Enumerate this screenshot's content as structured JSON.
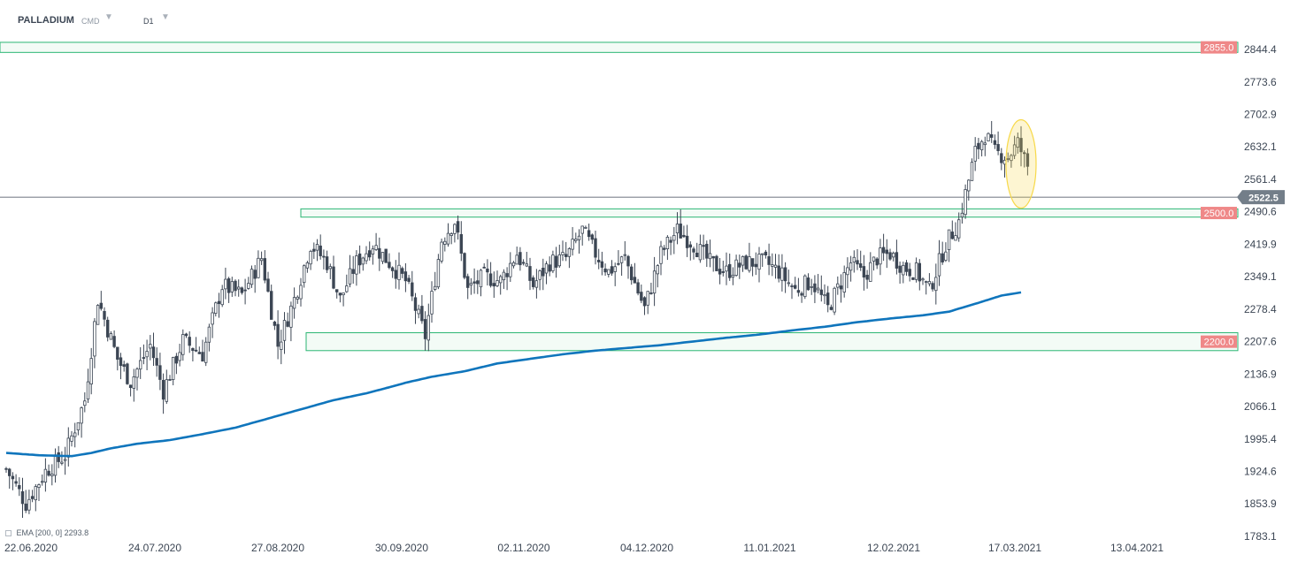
{
  "header": {
    "symbol": "PALLADIUM",
    "market": "CMD",
    "interval": "D1",
    "caret_icon": "chevron-down-icon"
  },
  "legend": {
    "name": "EMA",
    "params": "[200,  0]",
    "value": "2293.8"
  },
  "colors": {
    "candle": "#3c4654",
    "ema": "#0f75bc",
    "zone_border": "#2bb673",
    "zone_fill": "#e9f7ef",
    "tag_bg": "#ef8888",
    "price_tag_bg": "#737e89",
    "highlight": "#f7d94a"
  },
  "chart_data": {
    "type": "candlestick",
    "ylim": [
      1783.1,
      2874
    ],
    "y_ticks": [
      "2844.4",
      "2773.6",
      "2702.9",
      "2632.1",
      "2561.4",
      "2490.6",
      "2419.9",
      "2349.1",
      "2278.4",
      "2207.6",
      "2136.9",
      "2066.1",
      "1995.4",
      "1924.6",
      "1853.9",
      "1783.1"
    ],
    "x_labels": [
      "22.06.2020",
      "24.07.2020",
      "27.08.2020",
      "30.09.2020",
      "02.11.2020",
      "04.12.2020",
      "11.01.2021",
      "12.02.2021",
      "17.03.2021",
      "13.04.2021"
    ],
    "current_price": "2522.5",
    "zones": [
      {
        "label": "2855.0",
        "top": 2860,
        "bottom": 2838,
        "start_label": "22.06.2020"
      },
      {
        "label": "2500.0",
        "top": 2497,
        "bottom": 2479,
        "start_label": "27.08.2020"
      },
      {
        "label": "2200.0",
        "top": 2227,
        "bottom": 2188,
        "start_label": "27.08.2020"
      }
    ],
    "close_anchors": [
      [
        0,
        1930
      ],
      [
        6,
        1855
      ],
      [
        12,
        1925
      ],
      [
        18,
        1960
      ],
      [
        24,
        2080
      ],
      [
        28,
        2300
      ],
      [
        34,
        2170
      ],
      [
        38,
        2120
      ],
      [
        44,
        2200
      ],
      [
        48,
        2100
      ],
      [
        54,
        2210
      ],
      [
        60,
        2180
      ],
      [
        66,
        2330
      ],
      [
        72,
        2310
      ],
      [
        78,
        2390
      ],
      [
        83,
        2200
      ],
      [
        88,
        2300
      ],
      [
        93,
        2420
      ],
      [
        98,
        2380
      ],
      [
        102,
        2300
      ],
      [
        107,
        2380
      ],
      [
        112,
        2420
      ],
      [
        117,
        2380
      ],
      [
        122,
        2340
      ],
      [
        128,
        2220
      ],
      [
        133,
        2430
      ],
      [
        137,
        2470
      ],
      [
        141,
        2320
      ],
      [
        146,
        2350
      ],
      [
        151,
        2340
      ],
      [
        156,
        2400
      ],
      [
        161,
        2330
      ],
      [
        166,
        2380
      ],
      [
        171,
        2390
      ],
      [
        176,
        2450
      ],
      [
        180,
        2400
      ],
      [
        184,
        2360
      ],
      [
        189,
        2390
      ],
      [
        195,
        2280
      ],
      [
        200,
        2400
      ],
      [
        205,
        2450
      ],
      [
        210,
        2420
      ],
      [
        215,
        2380
      ],
      [
        220,
        2360
      ],
      [
        226,
        2380
      ],
      [
        232,
        2380
      ],
      [
        236,
        2360
      ],
      [
        241,
        2320
      ],
      [
        246,
        2340
      ],
      [
        251,
        2280
      ],
      [
        258,
        2380
      ],
      [
        262,
        2350
      ],
      [
        266,
        2390
      ],
      [
        270,
        2400
      ],
      [
        274,
        2370
      ],
      [
        278,
        2360
      ],
      [
        282,
        2320
      ],
      [
        287,
        2420
      ],
      [
        291,
        2470
      ],
      [
        296,
        2620
      ],
      [
        299,
        2660
      ],
      [
        302,
        2620
      ],
      [
        306,
        2610
      ],
      [
        309,
        2640
      ],
      [
        312,
        2590
      ]
    ],
    "ema_anchors": [
      [
        0,
        1965
      ],
      [
        10,
        1960
      ],
      [
        20,
        1958
      ],
      [
        26,
        1965
      ],
      [
        32,
        1975
      ],
      [
        40,
        1985
      ],
      [
        50,
        1993
      ],
      [
        60,
        2006
      ],
      [
        70,
        2020
      ],
      [
        80,
        2040
      ],
      [
        90,
        2060
      ],
      [
        100,
        2080
      ],
      [
        110,
        2095
      ],
      [
        118,
        2110
      ],
      [
        122,
        2118
      ],
      [
        130,
        2131
      ],
      [
        140,
        2143
      ],
      [
        150,
        2160
      ],
      [
        160,
        2170
      ],
      [
        170,
        2180
      ],
      [
        180,
        2188
      ],
      [
        190,
        2194
      ],
      [
        200,
        2200
      ],
      [
        210,
        2208
      ],
      [
        220,
        2216
      ],
      [
        230,
        2223
      ],
      [
        240,
        2232
      ],
      [
        250,
        2240
      ],
      [
        260,
        2250
      ],
      [
        270,
        2258
      ],
      [
        280,
        2265
      ],
      [
        288,
        2273
      ],
      [
        296,
        2290
      ],
      [
        304,
        2308
      ],
      [
        310,
        2315
      ]
    ],
    "series": [
      {
        "name": "EMA",
        "values": [
          "[200,  0]",
          "2293.8"
        ]
      }
    ]
  }
}
